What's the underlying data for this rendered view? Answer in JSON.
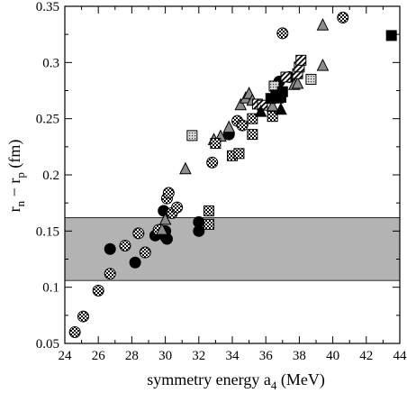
{
  "chart_data": {
    "type": "scatter",
    "title": "",
    "xlabel": "symmetry energy a",
    "xlabel_sub": "4",
    "xlabel_unit": "(MeV)",
    "ylabel": "r",
    "ylabel_sub1": "n",
    "ylabel_mid": " − r",
    "ylabel_sub2": "p",
    "ylabel_unit": "(fm)",
    "xlim": [
      24,
      44
    ],
    "ylim": [
      0.05,
      0.35
    ],
    "x_ticks": [
      24,
      26,
      28,
      30,
      32,
      34,
      36,
      38,
      40,
      42,
      44
    ],
    "x_tick_labels": [
      "24",
      "26",
      "28",
      "30",
      "32",
      "34",
      "36",
      "38",
      "40",
      "42",
      "44"
    ],
    "y_ticks": [
      0.05,
      0.1,
      0.15,
      0.2,
      0.25,
      0.3,
      0.35
    ],
    "y_tick_labels": [
      "0.05",
      "0.1",
      "0.15",
      "0.2",
      "0.25",
      "0.3",
      "0.35"
    ],
    "band": {
      "y_range": [
        0.106,
        0.162
      ],
      "color": "#b3b3b3"
    },
    "grid": false,
    "legend": "none",
    "series": [
      {
        "marker": "circle-solid",
        "x": [
          26.7,
          28.2,
          29.4,
          29.9,
          30.0,
          30.1,
          30.0,
          32.0,
          32.0,
          33.8,
          36.8,
          37.4
        ],
        "y": [
          0.134,
          0.122,
          0.146,
          0.168,
          0.15,
          0.143,
          0.145,
          0.158,
          0.15,
          0.236,
          0.283,
          0.287
        ]
      },
      {
        "marker": "circle-checker",
        "x": [
          24.6,
          25.1,
          26.0,
          26.7,
          27.6,
          28.4,
          28.8,
          29.6,
          30.1,
          30.2,
          30.4,
          30.7,
          32.8,
          34.3,
          34.6,
          37.0,
          40.6
        ],
        "y": [
          0.06,
          0.074,
          0.097,
          0.112,
          0.137,
          0.148,
          0.131,
          0.151,
          0.179,
          0.184,
          0.166,
          0.171,
          0.211,
          0.248,
          0.244,
          0.326,
          0.34
        ]
      },
      {
        "marker": "triangle-gray",
        "x": [
          29.8,
          30.0,
          31.2,
          32.9,
          33.3,
          33.8,
          34.5,
          34.8,
          35.0,
          35.2,
          36.4,
          36.7,
          37.7,
          37.9,
          39.4,
          39.4
        ],
        "y": [
          0.151,
          0.16,
          0.205,
          0.231,
          0.234,
          0.242,
          0.262,
          0.268,
          0.272,
          0.266,
          0.261,
          0.268,
          0.28,
          0.281,
          0.297,
          0.333
        ]
      },
      {
        "marker": "square-dotted",
        "x": [
          31.6,
          36.5,
          38.7
        ],
        "y": [
          0.235,
          0.279,
          0.285
        ]
      },
      {
        "marker": "square-checker",
        "x": [
          32.6,
          32.6,
          33.0,
          34.0,
          34.4,
          35.2,
          35.2,
          36.4
        ],
        "y": [
          0.156,
          0.168,
          0.228,
          0.217,
          0.219,
          0.236,
          0.25,
          0.252
        ]
      },
      {
        "marker": "square-hatched",
        "x": [
          35.5,
          35.8,
          37.2,
          37.9,
          38.0,
          38.1
        ],
        "y": [
          0.263,
          0.262,
          0.287,
          0.29,
          0.296,
          0.302
        ]
      },
      {
        "marker": "square-solid",
        "x": [
          36.3,
          36.6,
          36.9,
          37.0,
          43.5
        ],
        "y": [
          0.268,
          0.271,
          0.269,
          0.274,
          0.324
        ]
      },
      {
        "marker": "triangle-solid",
        "x": [
          35.7,
          36.9
        ],
        "y": [
          0.256,
          0.258
        ]
      }
    ]
  }
}
